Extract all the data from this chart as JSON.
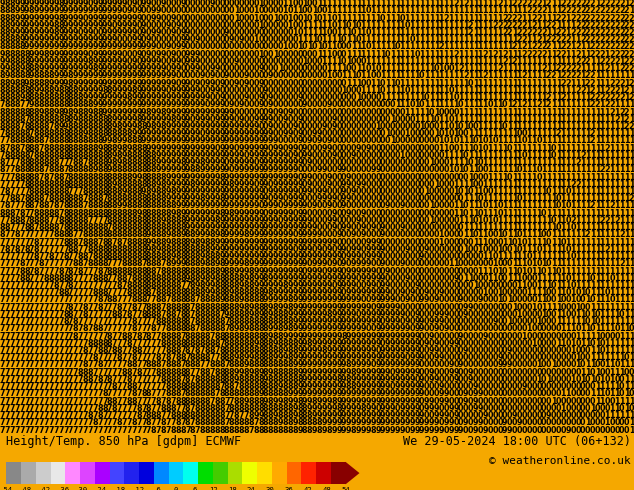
{
  "title": "Height/Temp. 850 hPa [gdpm] ECMWF",
  "datetime_str": "We 29-05-2024 18:00 UTC (06+132)",
  "copyright_str": "© weatheronline.co.uk",
  "bg_color": "#F5A800",
  "figsize": [
    6.34,
    4.9
  ],
  "dpi": 100,
  "colorbar_segment_colors": [
    "#888888",
    "#aaaaaa",
    "#cccccc",
    "#e8e8e8",
    "#ff88ff",
    "#dd44ff",
    "#aa00ff",
    "#4444ff",
    "#2222ee",
    "#0000dd",
    "#0088ff",
    "#00ccff",
    "#00ffee",
    "#00dd00",
    "#44cc00",
    "#aadd00",
    "#eeff00",
    "#ffdd00",
    "#ffaa00",
    "#ff6600",
    "#ff2200",
    "#cc0000",
    "#880000"
  ],
  "colorbar_ticks": [
    "-54",
    "-48",
    "-42",
    "-36",
    "-30",
    "-24",
    "-18",
    "-12",
    "-6",
    "0",
    "6",
    "12",
    "18",
    "24",
    "30",
    "36",
    "42",
    "48",
    "54"
  ],
  "colorbar_values": [
    -54,
    -48,
    -42,
    -36,
    -30,
    -24,
    -18,
    -12,
    -6,
    0,
    6,
    12,
    18,
    24,
    30,
    36,
    42,
    48,
    54
  ]
}
